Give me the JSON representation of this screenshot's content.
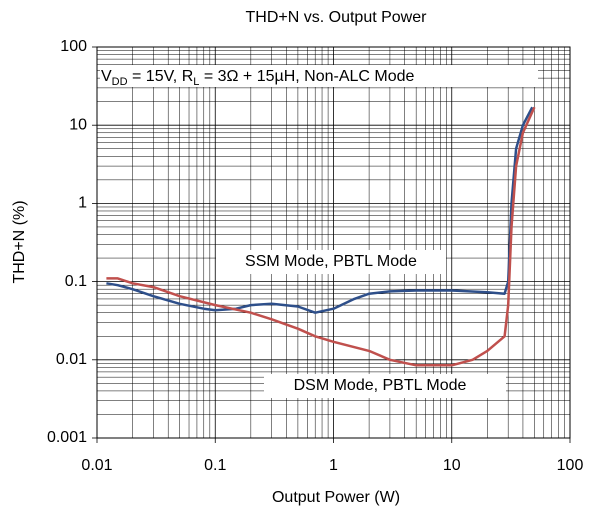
{
  "chart_data": {
    "type": "line",
    "title": "THD+N vs. Output Power",
    "x_label": "Output Power (W)",
    "y_label": "THD+N (%)",
    "annotation_parts": [
      "V",
      "DD",
      " = 15V, R",
      "L",
      " = 3Ω + 15µH, Non-ALC Mode"
    ],
    "log_x": true,
    "log_y": true,
    "grid": true,
    "minor_grid": true,
    "xlim": [
      0.01,
      100
    ],
    "ylim": [
      0.001,
      100
    ],
    "xticks": [
      0.01,
      0.1,
      1,
      10,
      100
    ],
    "yticks": [
      0.001,
      0.01,
      0.1,
      1,
      10,
      100
    ],
    "series": [
      {
        "name": "SSM Mode, PBTL Mode",
        "color": "#2e4f8a",
        "x": [
          0.012,
          0.015,
          0.02,
          0.03,
          0.05,
          0.08,
          0.1,
          0.15,
          0.2,
          0.3,
          0.5,
          0.7,
          1,
          1.5,
          2,
          3,
          5,
          10,
          20,
          28,
          30,
          32,
          35,
          40,
          48
        ],
        "values": [
          0.095,
          0.09,
          0.08,
          0.065,
          0.052,
          0.045,
          0.043,
          0.045,
          0.05,
          0.052,
          0.048,
          0.04,
          0.045,
          0.06,
          0.07,
          0.075,
          0.077,
          0.077,
          0.073,
          0.07,
          0.1,
          1,
          5,
          10,
          17
        ]
      },
      {
        "name": "DSM Mode, PBTL Mode",
        "color": "#c0504d",
        "x": [
          0.012,
          0.015,
          0.02,
          0.03,
          0.05,
          0.1,
          0.2,
          0.3,
          0.5,
          0.7,
          1,
          2,
          3,
          5,
          10,
          15,
          20,
          28,
          30,
          32,
          35,
          40,
          50
        ],
        "values": [
          0.11,
          0.11,
          0.095,
          0.085,
          0.065,
          0.05,
          0.04,
          0.033,
          0.025,
          0.02,
          0.017,
          0.013,
          0.01,
          0.0085,
          0.0085,
          0.01,
          0.013,
          0.02,
          0.05,
          0.5,
          3,
          8,
          17
        ]
      }
    ]
  }
}
